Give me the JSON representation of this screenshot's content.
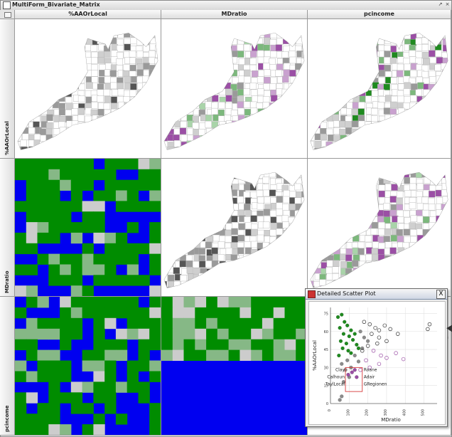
{
  "window": {
    "title": "MultiForm_Bivariate_Matrix",
    "controls": [
      "↗",
      "×"
    ]
  },
  "columns": [
    "%AAOrLocal",
    "MDratio",
    "pcincome"
  ],
  "rows": [
    "%AAOrLocal",
    "MDratio",
    "pcincome"
  ],
  "colors": {
    "green_dark": "#1f8a1f",
    "green_mid": "#7cb87c",
    "green_light": "#a9d4a9",
    "purple_dark": "#9b4fa5",
    "purple_light": "#c9a1cf",
    "gray_dark": "#555555",
    "gray_mid": "#9a9a9a",
    "gray_light": "#cfcfcf",
    "blue": "#0000f0",
    "matrix_green": "#008c00",
    "matrix_light": "#86b886",
    "matrix_gray": "#cccccc",
    "brush_red": "#d63a3a"
  },
  "scatter_window": {
    "title": "Detailed Scatter Plot",
    "close_label": "X",
    "xlabel": "MDratio",
    "ylabel": "%AAOrLocal",
    "yticks": [
      "75",
      "60",
      "45",
      "30",
      "15",
      "0"
    ],
    "xticks": [
      "0",
      "100",
      "200",
      "300",
      "400",
      "500"
    ],
    "labels_left": [
      "Clay",
      "Calhoun",
      "TaylLocal"
    ],
    "labels_right": [
      "Roane",
      "Adair",
      "GRegionen"
    ]
  },
  "chart_data": {
    "type": "scatter",
    "xlabel": "MDratio",
    "ylabel": "%AAOrLocal",
    "xlim": [
      0,
      570
    ],
    "ylim": [
      0,
      80
    ],
    "series": [
      {
        "points_filled_green": [
          [
            40,
            72
          ],
          [
            60,
            74
          ],
          [
            75,
            68
          ],
          [
            50,
            63
          ],
          [
            90,
            65
          ],
          [
            110,
            61
          ],
          [
            70,
            58
          ],
          [
            100,
            56
          ],
          [
            130,
            58
          ],
          [
            55,
            52
          ],
          [
            85,
            50
          ],
          [
            120,
            53
          ],
          [
            140,
            49
          ],
          [
            65,
            46
          ],
          [
            95,
            44
          ],
          [
            150,
            46
          ],
          [
            110,
            42
          ],
          [
            45,
            40
          ]
        ],
        "points_filled_gray": [
          [
            160,
            60
          ],
          [
            180,
            55
          ],
          [
            200,
            52
          ],
          [
            170,
            46
          ],
          [
            130,
            40
          ],
          [
            90,
            36
          ],
          [
            150,
            35
          ],
          [
            60,
            33
          ],
          [
            110,
            30
          ],
          [
            80,
            28
          ],
          [
            100,
            22
          ],
          [
            70,
            18
          ],
          [
            60,
            6
          ],
          [
            50,
            3
          ]
        ],
        "points_filled_purple": [
          [
            115,
            26
          ],
          [
            130,
            28
          ],
          [
            95,
            24
          ],
          [
            140,
            22
          ]
        ],
        "points_open_dark": [
          [
            180,
            68
          ],
          [
            210,
            66
          ],
          [
            240,
            63
          ],
          [
            260,
            61
          ],
          [
            290,
            65
          ],
          [
            320,
            62
          ],
          [
            360,
            58
          ],
          [
            260,
            55
          ],
          [
            220,
            58
          ],
          [
            300,
            52
          ],
          [
            520,
            62
          ],
          [
            530,
            66
          ],
          [
            200,
            48
          ],
          [
            250,
            50
          ],
          [
            170,
            44
          ]
        ],
        "points_open_purple": [
          [
            230,
            44
          ],
          [
            270,
            40
          ],
          [
            300,
            38
          ],
          [
            190,
            36
          ],
          [
            350,
            42
          ],
          [
            260,
            33
          ],
          [
            210,
            30
          ],
          [
            160,
            28
          ],
          [
            390,
            37
          ]
        ]
      }
    ]
  }
}
